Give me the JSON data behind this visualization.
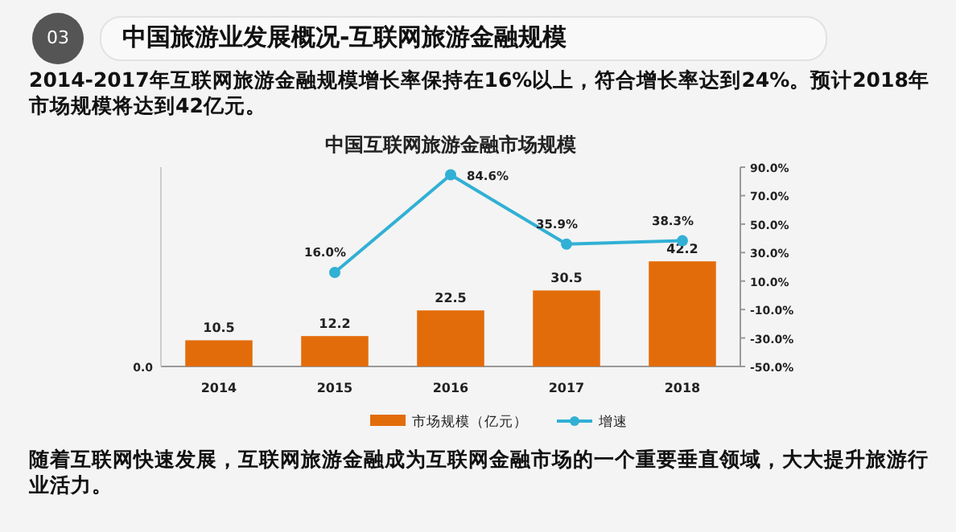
{
  "chart_data": {
    "type": "bar",
    "title": "中国互联网旅游金融市场规模",
    "categories": [
      "2014",
      "2015",
      "2016",
      "2017",
      "2018"
    ],
    "series": [
      {
        "name": "市场规模（亿元）",
        "color": "#e36c0a",
        "values": [
          10.5,
          12.2,
          22.5,
          30.5,
          42.2
        ],
        "value_labels": [
          "10.5",
          "12.2",
          "22.5",
          "30.5",
          "42.2"
        ]
      },
      {
        "name": "增速",
        "type": "line",
        "axis": "y2",
        "color": "#31b0d5",
        "values": [
          null,
          16.0,
          84.6,
          35.9,
          38.3
        ],
        "value_labels": [
          null,
          "16.0%",
          "84.6%",
          "35.9%",
          "38.3%"
        ]
      }
    ],
    "ylim": [
      0,
      80
    ],
    "y2lim": [
      -50,
      90
    ],
    "y2ticks": [
      {
        "value": -50,
        "label": "-50.0%"
      },
      {
        "value": -30,
        "label": "-30.0%"
      },
      {
        "value": -10,
        "label": "-10.0%"
      },
      {
        "value": 10,
        "label": "10.0%"
      },
      {
        "value": 30,
        "label": "30.0%"
      },
      {
        "value": 50,
        "label": "50.0%"
      },
      {
        "value": 70,
        "label": "70.0%"
      },
      {
        "value": 90,
        "label": "90.0%"
      }
    ],
    "marker": "circle",
    "legend": "bottom",
    "annotations": [
      "0.0",
      "03",
      "中国旅游业发展概况-互联网旅游金融规模",
      "2014-2017年互联网旅游金融规模增长率保持在16%以上，符合增长率达到24%。预计2018年市场规模将达到42亿元。",
      "随着互联网快速发展，互联网旅游金融成为互联网金融市场的一个重要垂直领域，大大提升旅游行业活力。"
    ]
  }
}
